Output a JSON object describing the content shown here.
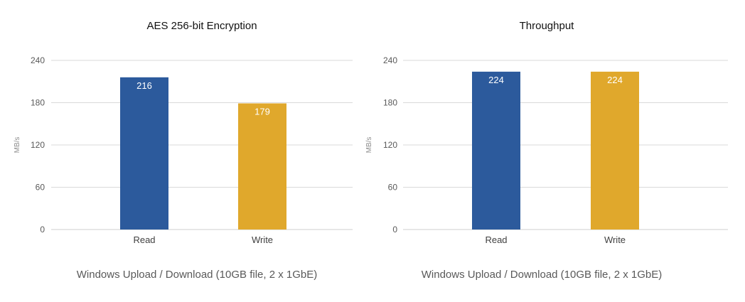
{
  "chart_data": [
    {
      "type": "bar",
      "title": "AES 256-bit Encryption",
      "xlabel": "Windows Upload / Download (10GB file, 2 x 1GbE)",
      "ylabel": "MB/s",
      "categories": [
        "Read",
        "Write"
      ],
      "values": [
        216,
        179
      ],
      "value_labels": [
        "216",
        "179"
      ],
      "colors": [
        "#2c5a9c",
        "#e0a82c"
      ],
      "ylim": [
        0,
        240
      ],
      "yticks": [
        "0",
        "60",
        "120",
        "180",
        "240"
      ],
      "grid": true
    },
    {
      "type": "bar",
      "title": "Throughput",
      "xlabel": "Windows Upload / Download (10GB file, 2 x 1GbE)",
      "ylabel": "MB/s",
      "categories": [
        "Read",
        "Write"
      ],
      "values": [
        224,
        224
      ],
      "value_labels": [
        "224",
        "224"
      ],
      "colors": [
        "#2c5a9c",
        "#e0a82c"
      ],
      "ylim": [
        0,
        240
      ],
      "yticks": [
        "0",
        "60",
        "120",
        "180",
        "240"
      ],
      "grid": true
    }
  ]
}
